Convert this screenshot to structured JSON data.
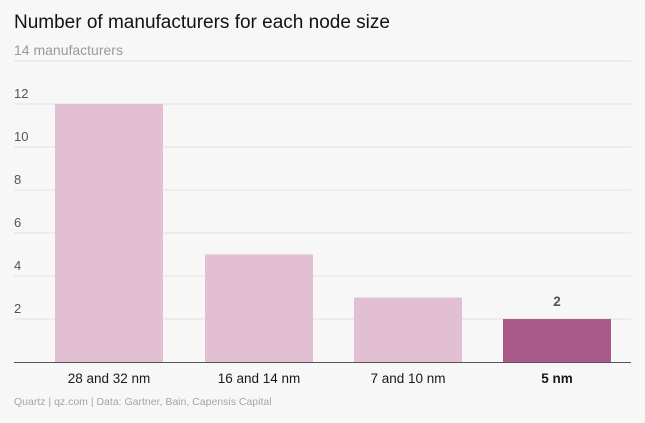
{
  "chart_data": {
    "type": "bar",
    "title": "Number of manufacturers for each node size",
    "subtitle": "14 manufacturers",
    "categories": [
      "28 and 32 nm",
      "16 and 14 nm",
      "7 and 10 nm",
      "5 nm"
    ],
    "values": [
      12,
      5,
      3,
      2
    ],
    "highlight_index": 3,
    "highlight_label": "2",
    "ylim": [
      0,
      14
    ],
    "yticks": [
      2,
      4,
      6,
      8,
      10,
      12
    ],
    "grid": true,
    "colors": {
      "bar": "#e2bfd2",
      "highlight": "#a85a8a",
      "grid": "#e2e2e2",
      "axis": "#555555"
    }
  },
  "footer": {
    "source": "Quartz | qz.com | Data: Gartner, Bain, Capensis Capital"
  }
}
